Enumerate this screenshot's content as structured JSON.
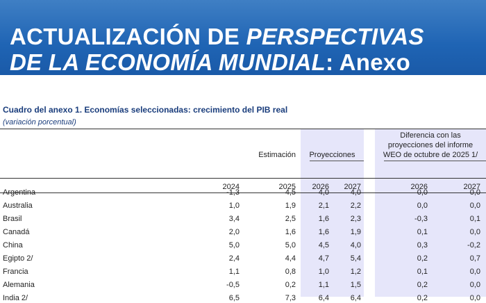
{
  "header": {
    "title_parts": [
      "ACTUALIZACIÓN DE ",
      "PERSPECTIVAS",
      "DE LA ECONOMÍA MUNDIAL",
      ": Anexo"
    ]
  },
  "table": {
    "title": "Cuadro del anexo 1. Economías seleccionadas: crecimiento del PIB real",
    "subtitle": "(variación porcentual)",
    "group_headers": {
      "estimate": "Estimación",
      "projections": "Proyecciones",
      "difference": "Diferencia con las proyecciones del informe WEO de octubre de 2025 1/"
    },
    "columns": [
      "2024",
      "2025",
      "2026",
      "2027",
      "2026",
      "2027"
    ],
    "rows": [
      [
        "Argentina",
        "-1,3",
        "4,5",
        "4,0",
        "4,0",
        "0,0",
        "0,0"
      ],
      [
        "Australia",
        "1,0",
        "1,9",
        "2,1",
        "2,2",
        "0,0",
        "0,0"
      ],
      [
        "Brasil",
        "3,4",
        "2,5",
        "1,6",
        "2,3",
        "-0,3",
        "0,1"
      ],
      [
        "Canadá",
        "2,0",
        "1,6",
        "1,6",
        "1,9",
        "0,1",
        "0,0"
      ],
      [
        "China",
        "5,0",
        "5,0",
        "4,5",
        "4,0",
        "0,3",
        "-0,2"
      ],
      [
        "Egipto 2/",
        "2,4",
        "4,4",
        "4,7",
        "5,4",
        "0,2",
        "0,7"
      ],
      [
        "Francia",
        "1,1",
        "0,8",
        "1,0",
        "1,2",
        "0,1",
        "0,0"
      ],
      [
        "Alemania",
        "-0,5",
        "0,2",
        "1,1",
        "1,5",
        "0,2",
        "0,0"
      ],
      [
        "India 2/",
        "6,5",
        "7,3",
        "6,4",
        "6,4",
        "0,2",
        "0,0"
      ]
    ]
  }
}
